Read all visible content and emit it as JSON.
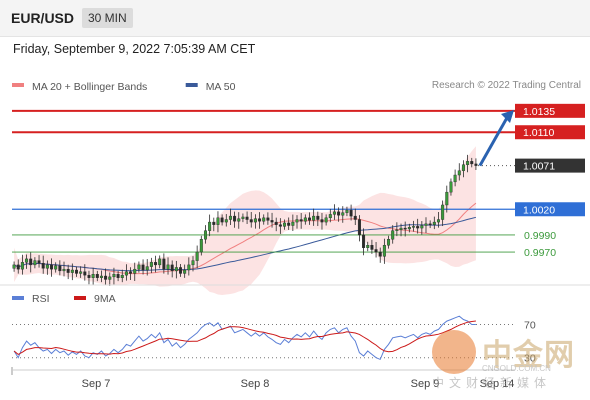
{
  "header": {
    "symbol": "EUR/USD",
    "timeframe": "30 MIN"
  },
  "datetime": "Friday, September 9, 2022 7:05:39 AM CET",
  "credit": "Research © 2022 Trading Central",
  "legend_main": [
    {
      "label": "MA 20 + Bollinger Bands",
      "color": "#f08080"
    },
    {
      "label": "MA 50",
      "color": "#3a5a9a"
    }
  ],
  "legend_rsi": [
    {
      "label": "RSI",
      "color": "#5b7fd6"
    },
    {
      "label": "9MA",
      "color": "#cc1a1a"
    }
  ],
  "colors": {
    "resistance": "#d62020",
    "pivot": "#2f6fd6",
    "support": "#3c9a3c",
    "current": "#333333",
    "arrow": "#2a62b0"
  },
  "chart_data": {
    "type": "candlestick",
    "y_range": [
      0.9935,
      1.015
    ],
    "x_ticks": [
      "Sep 7",
      "Sep 8",
      "Sep 9",
      "Sep 14"
    ],
    "levels": [
      {
        "label": "1.0135",
        "value": 1.0135,
        "kind": "resistance"
      },
      {
        "label": "1.0110",
        "value": 1.011,
        "kind": "resistance"
      },
      {
        "label": "1.0071",
        "value": 1.0071,
        "kind": "current"
      },
      {
        "label": "1.0020",
        "value": 1.002,
        "kind": "pivot"
      },
      {
        "label": "0.9990",
        "value": 0.999,
        "kind": "support"
      },
      {
        "label": "0.9970",
        "value": 0.997,
        "kind": "support"
      }
    ],
    "close": [
      0.9955,
      0.995,
      0.9958,
      0.9962,
      0.9955,
      0.996,
      0.9957,
      0.9951,
      0.9955,
      0.995,
      0.9954,
      0.9948,
      0.995,
      0.9946,
      0.9949,
      0.9945,
      0.9947,
      0.9943,
      0.994,
      0.9944,
      0.994,
      0.9942,
      0.9938,
      0.9941,
      0.9944,
      0.994,
      0.9943,
      0.9947,
      0.9945,
      0.995,
      0.9955,
      0.9949,
      0.9953,
      0.9958,
      0.9955,
      0.9962,
      0.995,
      0.9955,
      0.9948,
      0.9952,
      0.9945,
      0.9949,
      0.9955,
      0.996,
      0.997,
      0.9985,
      0.9995,
      1.0005,
      1.0002,
      1.001,
      1.0005,
      1.0008,
      1.0012,
      1.0006,
      1.0009,
      1.0011,
      1.0008,
      1.0005,
      1.0009,
      1.0006,
      1.001,
      1.0007,
      1.0005,
      1.0002,
      1.0,
      1.0004,
      1.0001,
      1.0005,
      1.0008,
      1.0006,
      1.001,
      1.0007,
      1.0012,
      1.0008,
      1.0005,
      1.001,
      1.0014,
      1.0017,
      1.0013,
      1.0016,
      1.0019,
      1.0012,
      1.0008,
      0.999,
      0.9975,
      0.9978,
      0.9973,
      0.997,
      0.9965,
      0.9978,
      0.9985,
      0.9995,
      0.9996,
      0.9998,
      0.9997,
      0.9999,
      1.0,
      0.9998,
      1.0001,
      1.0003,
      1.0002,
      1.0005,
      1.0008,
      1.0025,
      1.004,
      1.0052,
      1.006,
      1.0065,
      1.0072,
      1.0076,
      1.0073,
      1.0071
    ],
    "rsi": [
      38,
      30,
      42,
      50,
      45,
      48,
      42,
      38,
      40,
      35,
      40,
      36,
      38,
      33,
      37,
      34,
      38,
      32,
      30,
      36,
      34,
      38,
      32,
      35,
      40,
      36,
      40,
      46,
      44,
      50,
      56,
      50,
      53,
      58,
      54,
      60,
      48,
      52,
      44,
      48,
      42,
      46,
      52,
      56,
      60,
      66,
      70,
      72,
      68,
      72,
      64,
      66,
      68,
      60,
      62,
      64,
      60,
      56,
      60,
      56,
      60,
      55,
      52,
      48,
      46,
      52,
      48,
      54,
      58,
      55,
      60,
      55,
      62,
      56,
      52,
      60,
      64,
      66,
      60,
      64,
      66,
      56,
      50,
      36,
      32,
      38,
      34,
      30,
      28,
      40,
      46,
      54,
      55,
      56,
      54,
      56,
      58,
      54,
      58,
      60,
      58,
      62,
      64,
      70,
      74,
      76,
      78,
      80,
      76,
      74,
      70,
      70
    ],
    "rsi_levels": [
      30,
      70
    ],
    "rsi_range": [
      20,
      85
    ]
  }
}
